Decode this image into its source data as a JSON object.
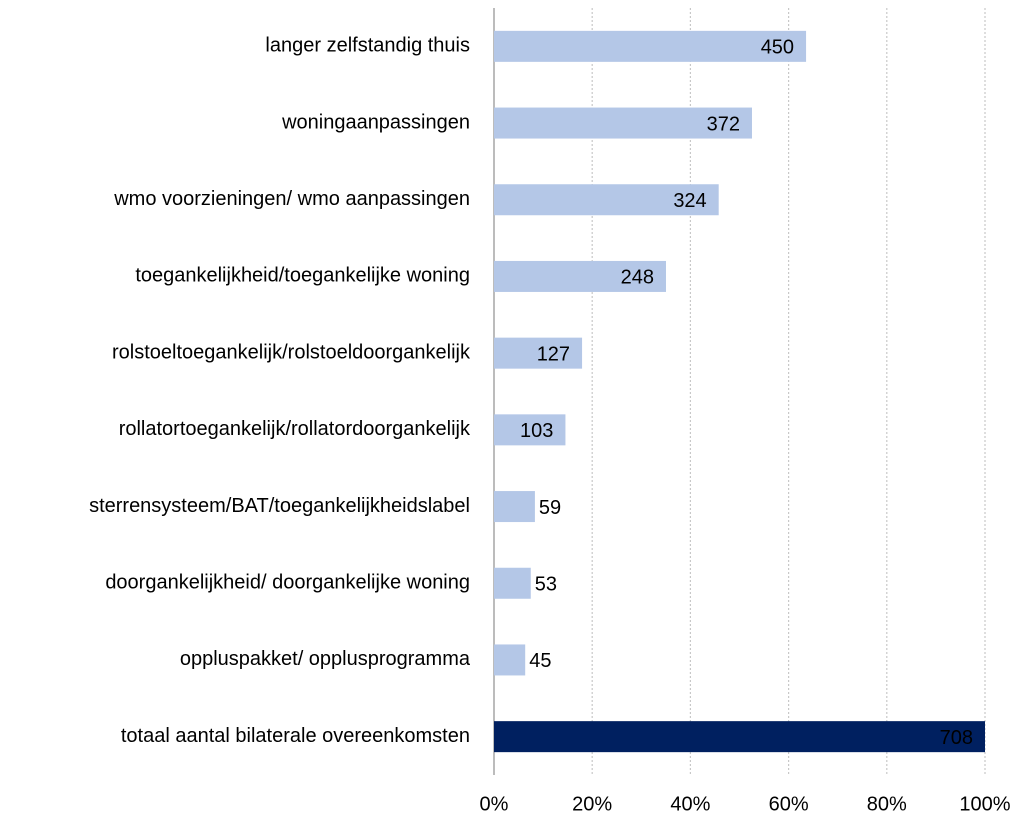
{
  "chart_data": {
    "type": "barh",
    "categories": [
      "langer zelfstandig thuis",
      "woningaanpassingen",
      "wmo voorzieningen/ wmo aanpassingen",
      "toegankelijkheid/toegankelijke woning",
      "rolstoeltoegankelijk/rolstoeldoorgankelijk",
      "rollatortoegankelijk/rollatordoorgankelijk",
      "sterrensysteem/BAT/toegankelijkheidslabel",
      "doorgankelijkheid/ doorgankelijke woning",
      "oppluspakket/ opplusprogramma",
      "totaal aantal bilaterale overeenkomsten"
    ],
    "values": [
      450,
      372,
      324,
      248,
      127,
      103,
      59,
      53,
      45,
      708
    ],
    "colors": [
      "#b4c7e7",
      "#b4c7e7",
      "#b4c7e7",
      "#b4c7e7",
      "#b4c7e7",
      "#b4c7e7",
      "#b4c7e7",
      "#b4c7e7",
      "#b4c7e7",
      "#002060"
    ],
    "xlim": [
      0,
      708
    ],
    "xticks": [
      {
        "value": 0,
        "label": "0%"
      },
      {
        "value": 141.6,
        "label": "20%"
      },
      {
        "value": 283.2,
        "label": "40%"
      },
      {
        "value": 424.8,
        "label": "60%"
      },
      {
        "value": 566.4,
        "label": "80%"
      },
      {
        "value": 708,
        "label": "100%"
      }
    ],
    "grid": true
  }
}
